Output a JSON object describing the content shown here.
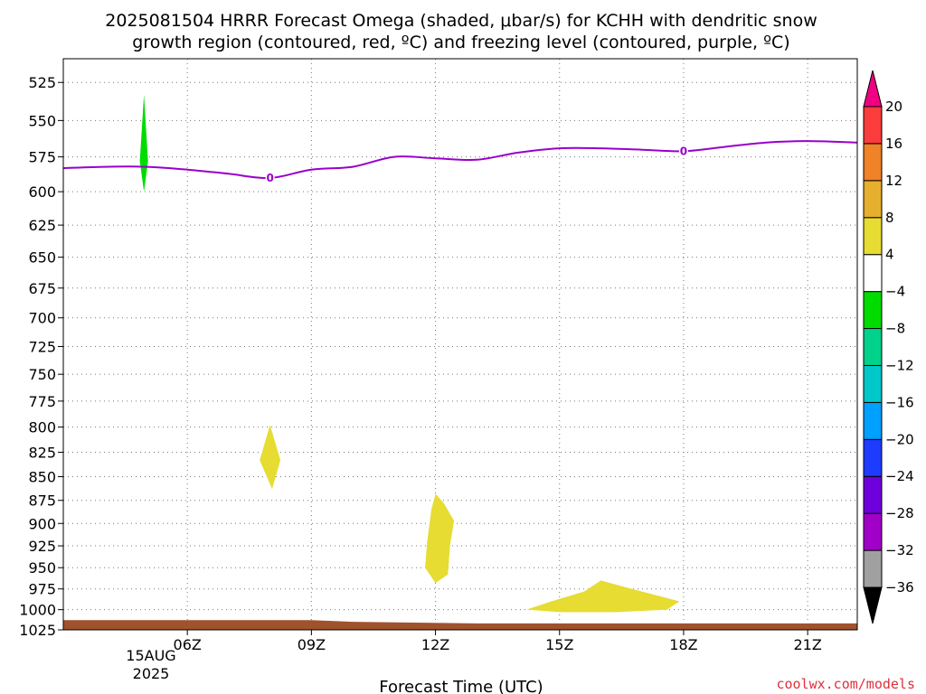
{
  "title": {
    "line1": "2025081504 HRRR Forecast Omega (shaded, μbar/s) for KCHH with dendritic snow",
    "line2": "growth region (contoured, red, ºC) and freezing level (contoured, purple, ºC)"
  },
  "xaxis": {
    "title": "Forecast Time (UTC)",
    "date_line1": "15AUG",
    "date_line2": "2025"
  },
  "credit": "coolwx.com/models",
  "chart_data": {
    "type": "heatmap",
    "title": "2025081504 HRRR Forecast Omega (shaded, μbar/s) for KCHH with dendritic snow growth region (contoured, red, ºC) and freezing level (contoured, purple, ºC)",
    "xlabel": "Forecast Time (UTC)",
    "ylabel": "",
    "x_range_hours_utc": [
      3.0,
      22.2
    ],
    "y_range_mb": [
      510,
      1025
    ],
    "y_inverted": true,
    "grid": true,
    "x_ticks": [
      {
        "hour": 6,
        "label": "06Z"
      },
      {
        "hour": 9,
        "label": "09Z"
      },
      {
        "hour": 12,
        "label": "12Z"
      },
      {
        "hour": 15,
        "label": "15Z"
      },
      {
        "hour": 18,
        "label": "18Z"
      },
      {
        "hour": 21,
        "label": "21Z"
      }
    ],
    "y_ticks": [
      525,
      550,
      575,
      600,
      625,
      650,
      675,
      700,
      725,
      750,
      775,
      800,
      825,
      850,
      875,
      900,
      925,
      950,
      975,
      1000,
      1025
    ],
    "colorbar": {
      "levels": [
        -36,
        -32,
        -28,
        -24,
        -20,
        -16,
        -12,
        -8,
        -4,
        4,
        8,
        12,
        16,
        20
      ],
      "colors": [
        "#000000",
        "#a0a0a0",
        "#a000c8",
        "#6e00dc",
        "#1e3cff",
        "#00a0ff",
        "#00c8c8",
        "#00d28c",
        "#00dc00",
        "#ffffff",
        "#e6dc32",
        "#e6af2d",
        "#f08228",
        "#fa3c3c",
        "#f00082"
      ]
    },
    "shaded_regions": [
      {
        "name": "omega -8 to -4",
        "color": "#00dc00",
        "points": [
          [
            4.95,
            533
          ],
          [
            5.05,
            578
          ],
          [
            4.95,
            600
          ],
          [
            4.85,
            578
          ]
        ]
      },
      {
        "name": "omega 4 to 8",
        "color": "#e6dc32",
        "points": [
          [
            8.0,
            798
          ],
          [
            8.25,
            833
          ],
          [
            8.05,
            863
          ],
          [
            7.75,
            833
          ]
        ]
      },
      {
        "name": "omega 4 to 8",
        "color": "#e6dc32",
        "points": [
          [
            12.0,
            868
          ],
          [
            12.2,
            878
          ],
          [
            12.45,
            897
          ],
          [
            12.35,
            925
          ],
          [
            12.3,
            958
          ],
          [
            12.0,
            968
          ],
          [
            11.75,
            950
          ],
          [
            11.8,
            920
          ],
          [
            11.9,
            885
          ]
        ]
      },
      {
        "name": "omega 4 to 8",
        "color": "#e6dc32",
        "points": [
          [
            14.2,
            1000
          ],
          [
            14.8,
            990
          ],
          [
            15.6,
            978
          ],
          [
            16.0,
            965
          ],
          [
            16.6,
            973
          ],
          [
            17.3,
            982
          ],
          [
            17.9,
            990
          ],
          [
            17.6,
            1000
          ],
          [
            16.4,
            1003
          ],
          [
            15.0,
            1003
          ]
        ]
      }
    ],
    "freezing_level_0C": {
      "label": "0",
      "x_hours": [
        3.0,
        4.0,
        5.0,
        6.0,
        7.0,
        8.0,
        9.0,
        10.0,
        11.0,
        12.0,
        13.0,
        14.0,
        15.0,
        16.0,
        17.0,
        18.0,
        19.0,
        20.0,
        21.0,
        22.2
      ],
      "pressure_mb": [
        583,
        582,
        582,
        584,
        587,
        590,
        584,
        582,
        575,
        576,
        577,
        572,
        569,
        569,
        570,
        571,
        568,
        565,
        564,
        565
      ]
    },
    "terrain": {
      "x_hours": [
        3.0,
        9.0,
        10.0,
        13.0,
        22.2
      ],
      "top_pressure_mb": [
        1013,
        1013,
        1015,
        1017,
        1017
      ]
    }
  }
}
